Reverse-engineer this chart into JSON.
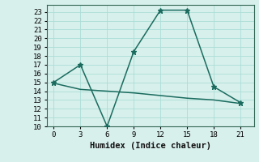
{
  "line1_x": [
    0,
    3,
    6,
    9,
    12,
    15,
    18,
    21
  ],
  "line1_y": [
    15,
    17,
    10,
    18.5,
    23.2,
    23.2,
    14.5,
    12.7
  ],
  "line2_x": [
    0,
    3,
    6,
    9,
    12,
    15,
    18,
    21
  ],
  "line2_y": [
    14.9,
    14.2,
    14.0,
    13.8,
    13.5,
    13.2,
    13.0,
    12.6
  ],
  "line_color": "#1a6b5e",
  "bg_color": "#d8f0ec",
  "grid_color": "#aaddd6",
  "xlabel": "Humidex (Indice chaleur)",
  "xlabel_fontsize": 7.5,
  "xlim": [
    -0.8,
    22.5
  ],
  "ylim": [
    10,
    23.8
  ],
  "xticks": [
    0,
    3,
    6,
    9,
    12,
    15,
    18,
    21
  ],
  "yticks": [
    10,
    11,
    12,
    13,
    14,
    15,
    16,
    17,
    18,
    19,
    20,
    21,
    22,
    23
  ],
  "tick_fontsize": 6.5,
  "marker": "*",
  "marker_size": 5,
  "line_width": 1.1
}
